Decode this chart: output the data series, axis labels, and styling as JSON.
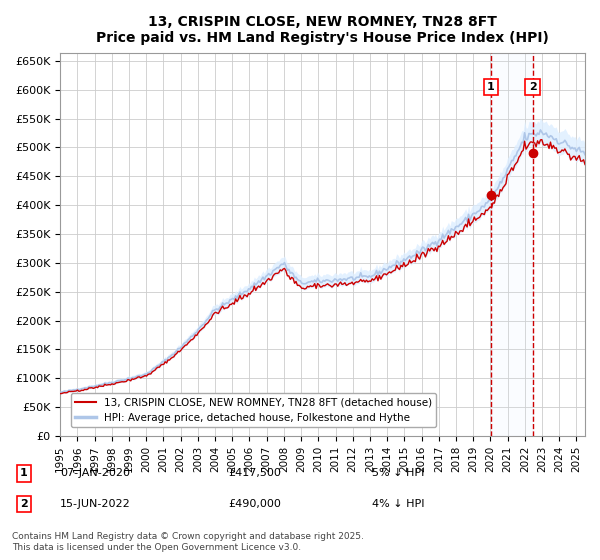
{
  "title": "13, CRISPIN CLOSE, NEW ROMNEY, TN28 8FT",
  "subtitle": "Price paid vs. HM Land Registry's House Price Index (HPI)",
  "ylabel_prefix": "£",
  "yticks": [
    0,
    50000,
    100000,
    150000,
    200000,
    250000,
    300000,
    350000,
    400000,
    450000,
    500000,
    550000,
    600000,
    650000
  ],
  "ytick_labels": [
    "£0",
    "£50K",
    "£100K",
    "£150K",
    "£200K",
    "£250K",
    "£300K",
    "£350K",
    "£400K",
    "£450K",
    "£500K",
    "£550K",
    "£600K",
    "£650K"
  ],
  "hpi_color": "#aec6e8",
  "price_color": "#cc0000",
  "sale1_date": 2020.03,
  "sale1_price": 417500,
  "sale1_label": "1",
  "sale2_date": 2022.46,
  "sale2_price": 490000,
  "sale2_label": "2",
  "shade_color": "#ddeeff",
  "legend1": "13, CRISPIN CLOSE, NEW ROMNEY, TN28 8FT (detached house)",
  "legend2": "HPI: Average price, detached house, Folkestone and Hythe",
  "note1_label": "1",
  "note1_date": "07-JAN-2020",
  "note1_price": "£417,500",
  "note1_pct": "5% ↓ HPI",
  "note2_label": "2",
  "note2_date": "15-JUN-2022",
  "note2_price": "£490,000",
  "note2_pct": "4% ↓ HPI",
  "footer": "Contains HM Land Registry data © Crown copyright and database right 2025.\nThis data is licensed under the Open Government Licence v3.0.",
  "xmin": 1995.0,
  "xmax": 2025.5,
  "ymin": 0,
  "ymax": 650000
}
